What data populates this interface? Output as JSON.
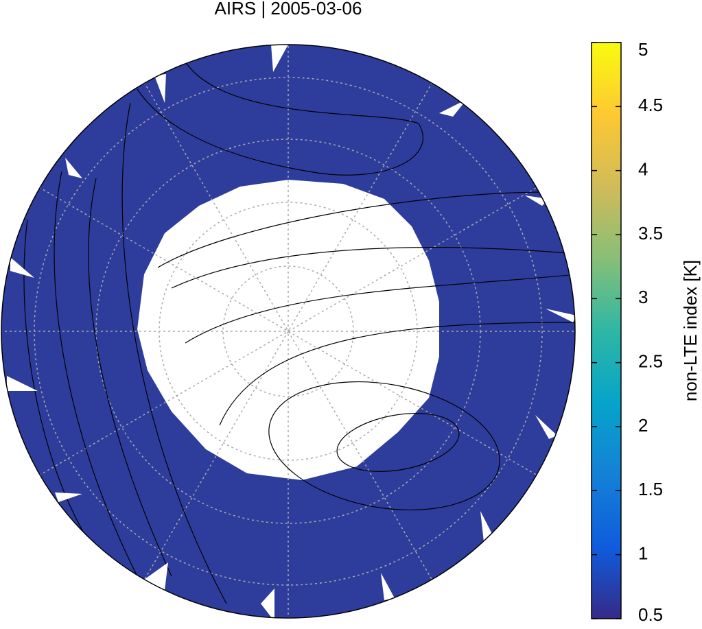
{
  "title": "AIRS | 2005-03-06",
  "colorbar": {
    "label": "non-LTE index [K]",
    "lim": [
      0.5,
      5
    ],
    "ticks": [
      0.5,
      1,
      1.5,
      2,
      2.5,
      3,
      3.5,
      4,
      4.5,
      5
    ],
    "colormap": [
      "#352a87",
      "#0f5cdd",
      "#1481d6",
      "#06a4ca",
      "#2eb7a4",
      "#87bf77",
      "#d1bb59",
      "#fec832",
      "#f9fb0e"
    ]
  }
}
